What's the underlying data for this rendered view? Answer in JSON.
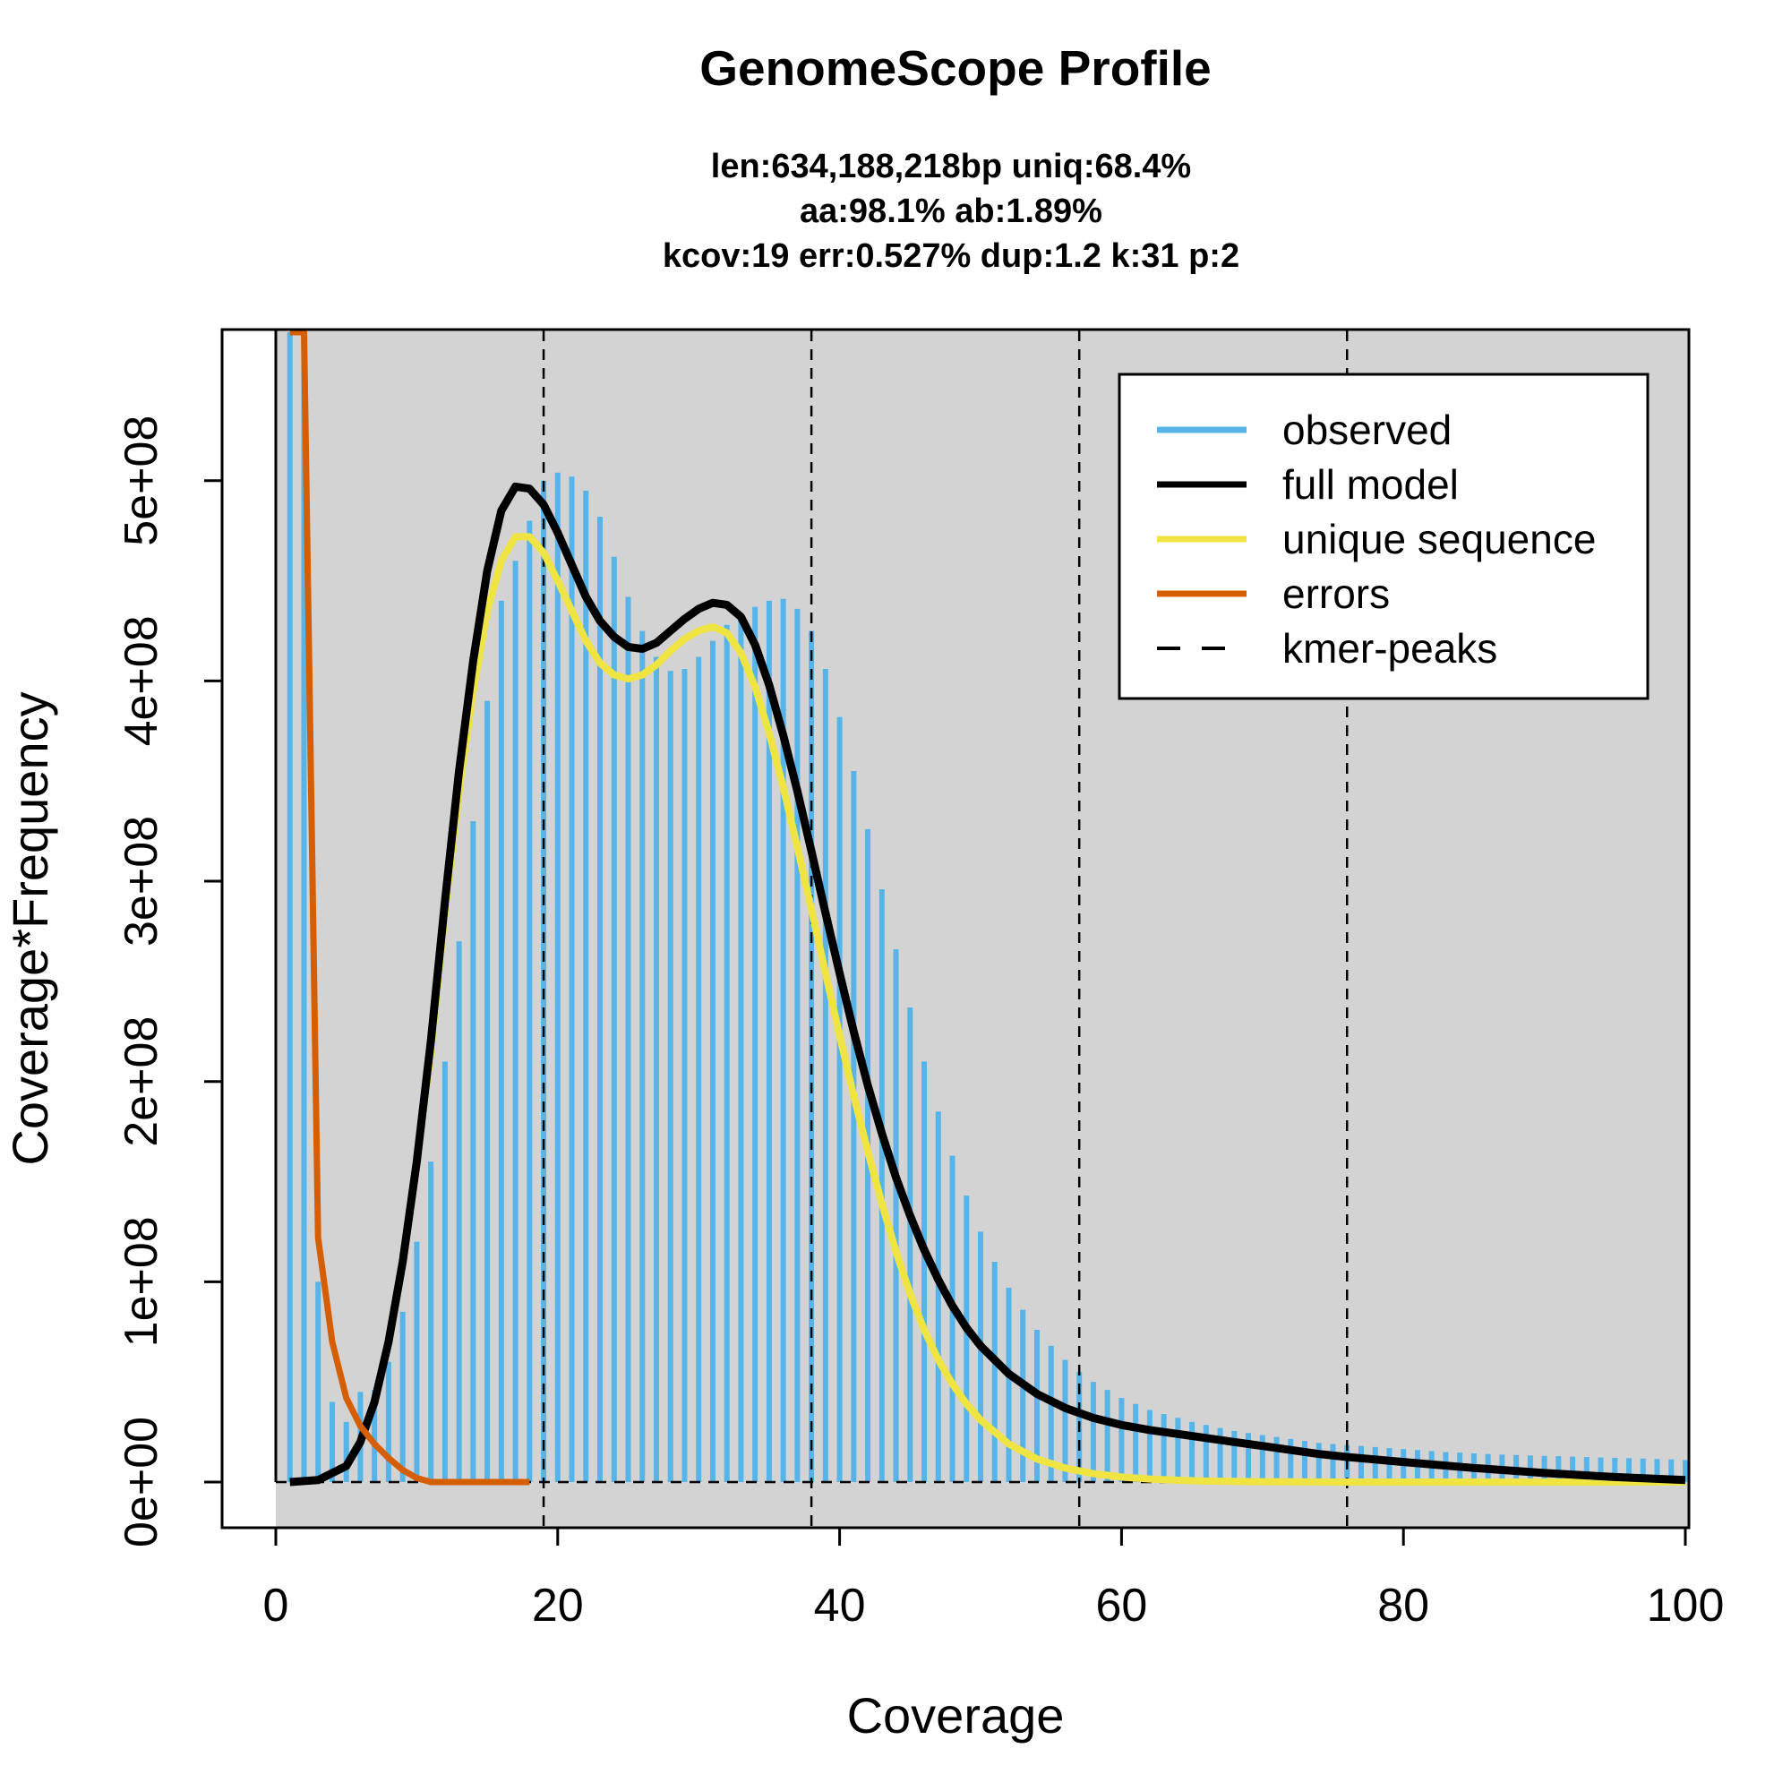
{
  "chart_data": {
    "type": "line",
    "title": "GenomeScope Profile",
    "subtitle_lines": [
      "len:634,188,218bp uniq:68.4%",
      "aa:98.1% ab:1.89%",
      "kcov:19 err:0.527%  dup:1.2  k:31 p:2"
    ],
    "xlabel": "Coverage",
    "ylabel": "Coverage*Frequency",
    "xlim": [
      0,
      100
    ],
    "ylim": [
      0,
      575000000.0
    ],
    "x_ticks": [
      0,
      20,
      40,
      60,
      80,
      100
    ],
    "x_tick_labels": [
      "0",
      "20",
      "40",
      "60",
      "80",
      "100"
    ],
    "y_ticks": [
      0,
      100000000,
      200000000,
      300000000,
      400000000,
      500000000
    ],
    "y_tick_labels": [
      "0e+00",
      "1e+08",
      "2e+08",
      "3e+08",
      "4e+08",
      "5e+08"
    ],
    "legend_position": "top-right",
    "colors": {
      "observed": "#56B4E9",
      "full_model": "#000000",
      "unique_sequence": "#F0E442",
      "errors": "#D55E00",
      "kmer_peaks": "#000000",
      "plot_background": "#D3D3D3"
    },
    "kmer_peaks": [
      19,
      38,
      57,
      76
    ],
    "observed": {
      "name": "observed",
      "x": [
        1,
        2,
        3,
        4,
        5,
        6,
        7,
        8,
        9,
        10,
        11,
        12,
        13,
        14,
        15,
        16,
        17,
        18,
        19,
        20,
        21,
        22,
        23,
        24,
        25,
        26,
        27,
        28,
        29,
        30,
        31,
        32,
        33,
        34,
        35,
        36,
        37,
        38,
        39,
        40,
        41,
        42,
        43,
        44,
        45,
        46,
        47,
        48,
        49,
        50,
        51,
        52,
        53,
        54,
        55,
        56,
        57,
        58,
        59,
        60,
        61,
        62,
        63,
        64,
        65,
        66,
        67,
        68,
        69,
        70,
        71,
        72,
        73,
        74,
        75,
        76,
        77,
        78,
        79,
        80,
        81,
        82,
        83,
        84,
        85,
        86,
        87,
        88,
        89,
        90,
        91,
        92,
        93,
        94,
        95,
        96,
        97,
        98,
        99,
        100
      ],
      "y": [
        575000000.0,
        575000000.0,
        100000000.0,
        40000000.0,
        30000000.0,
        45000000.0,
        46000000.0,
        60000000.0,
        85000000.0,
        120000000.0,
        160000000.0,
        210000000.0,
        270000000.0,
        330000000.0,
        390000000.0,
        440000000.0,
        460000000.0,
        480000000.0,
        500000000.0,
        504000000.0,
        502000000.0,
        495000000.0,
        482000000.0,
        462000000.0,
        442000000.0,
        425000000.0,
        412000000.0,
        405000000.0,
        406000000.0,
        412000000.0,
        420000000.0,
        428000000.0,
        433000000.0,
        437000000.0,
        440000000.0,
        441000000.0,
        436000000.0,
        425000000.0,
        406000000.0,
        382000000.0,
        355000000.0,
        326000000.0,
        296000000.0,
        266000000.0,
        237000000.0,
        210000000.0,
        185000000.0,
        163000000.0,
        143000000.0,
        125000000.0,
        110000000.0,
        97000000.0,
        86000000.0,
        76000000.0,
        68000000.0,
        61000000.0,
        55000000.0,
        50000000.0,
        46000000.0,
        42000000.0,
        39000000.0,
        36000000.0,
        34000000.0,
        32000000.0,
        30000000.0,
        28500000.0,
        27000000.0,
        25500000.0,
        24500000.0,
        23500000.0,
        22500000.0,
        21500000.0,
        20500000.0,
        19500000.0,
        19000000.0,
        18500000.0,
        18000000.0,
        17500000.0,
        17000000.0,
        16500000.0,
        16000000.0,
        15500000.0,
        15000000.0,
        14700000.0,
        14300000.0,
        14000000.0,
        13700000.0,
        13500000.0,
        13300000.0,
        13100000.0,
        12900000.0,
        12700000.0,
        12500000.0,
        12300000.0,
        12100000.0,
        11900000.0,
        11700000.0,
        11500000.0,
        11300000.0,
        11000000.0
      ]
    },
    "series": [
      {
        "name": "full model",
        "x": [
          1,
          3,
          5,
          6,
          7,
          8,
          9,
          10,
          11,
          12,
          13,
          14,
          15,
          16,
          17,
          18,
          19,
          20,
          21,
          22,
          23,
          24,
          25,
          26,
          27,
          28,
          29,
          30,
          31,
          32,
          33,
          34,
          35,
          36,
          37,
          38,
          39,
          40,
          41,
          42,
          43,
          44,
          45,
          46,
          47,
          48,
          49,
          50,
          52,
          54,
          56,
          58,
          60,
          62,
          64,
          66,
          68,
          70,
          72,
          74,
          76,
          80,
          85,
          90,
          95,
          100
        ],
        "y": [
          0,
          1000000.0,
          8000000.0,
          20000000.0,
          40000000.0,
          70000000.0,
          110000000.0,
          160000000.0,
          220000000.0,
          290000000.0,
          355000000.0,
          410000000.0,
          455000000.0,
          485000000.0,
          497000000.0,
          496000000.0,
          488000000.0,
          474000000.0,
          458000000.0,
          442000000.0,
          430000000.0,
          422000000.0,
          417000000.0,
          416000000.0,
          419000000.0,
          425000000.0,
          431000000.0,
          436000000.0,
          439000000.0,
          438000000.0,
          432000000.0,
          418000000.0,
          398000000.0,
          373000000.0,
          345000000.0,
          315000000.0,
          284000000.0,
          254000000.0,
          225000000.0,
          198000000.0,
          174000000.0,
          152000000.0,
          133000000.0,
          116000000.0,
          101000000.0,
          88000000.0,
          77000000.0,
          68000000.0,
          54000000.0,
          44000000.0,
          37000000.0,
          32000000.0,
          28500000.0,
          26000000.0,
          24000000.0,
          22000000.0,
          20000000.0,
          18000000.0,
          16000000.0,
          14000000.0,
          12500000.0,
          10000000.0,
          7000000.0,
          4500000.0,
          2500000.0,
          1000000.0
        ]
      },
      {
        "name": "unique sequence",
        "x": [
          1,
          3,
          5,
          6,
          7,
          8,
          9,
          10,
          11,
          12,
          13,
          14,
          15,
          16,
          17,
          18,
          19,
          20,
          21,
          22,
          23,
          24,
          25,
          26,
          27,
          28,
          29,
          30,
          31,
          32,
          33,
          34,
          35,
          36,
          37,
          38,
          39,
          40,
          41,
          42,
          43,
          44,
          45,
          46,
          47,
          48,
          49,
          50,
          52,
          54,
          56,
          58,
          60,
          62,
          64,
          66,
          68,
          70,
          72,
          74,
          76,
          80,
          85,
          90,
          95,
          100
        ],
        "y": [
          0,
          1000000.0,
          8000000.0,
          20000000.0,
          40000000.0,
          70000000.0,
          110000000.0,
          160000000.0,
          215000000.0,
          285000000.0,
          345000000.0,
          395000000.0,
          435000000.0,
          460000000.0,
          472000000.0,
          472000000.0,
          464000000.0,
          450000000.0,
          435000000.0,
          420000000.0,
          409000000.0,
          403000000.0,
          401000000.0,
          403000000.0,
          408000000.0,
          415000000.0,
          421000000.0,
          425000000.0,
          427000000.0,
          424000000.0,
          414000000.0,
          397000000.0,
          374000000.0,
          347000000.0,
          317000000.0,
          286000000.0,
          254000000.0,
          223000000.0,
          193000000.0,
          165000000.0,
          139000000.0,
          115000000.0,
          94000000.0,
          76000000.0,
          61000000.0,
          49000000.0,
          39000000.0,
          31000000.0,
          19000000.0,
          11500000.0,
          7000000.0,
          4200000.0,
          2500000.0,
          1500000.0,
          900000.0,
          500000.0,
          300000.0,
          200000.0,
          100000.0,
          50000.0,
          20000.0,
          0,
          0,
          0,
          0,
          0
        ]
      },
      {
        "name": "errors",
        "x": [
          1,
          2,
          3,
          4,
          5,
          6,
          7,
          8,
          9,
          10,
          11,
          12,
          13,
          14,
          15,
          16,
          17,
          18
        ],
        "y": [
          575000000.0,
          575000000.0,
          122000000.0,
          70000000.0,
          42000000.0,
          28000000.0,
          19000000.0,
          12000000.0,
          6000000.0,
          2000000.0,
          0,
          0,
          0,
          0,
          0,
          0,
          0,
          0
        ]
      }
    ],
    "legend": [
      {
        "label": "observed",
        "style": "solid",
        "color": "#56B4E9"
      },
      {
        "label": "full model",
        "style": "solid",
        "color": "#000000"
      },
      {
        "label": "unique sequence",
        "style": "solid",
        "color": "#F0E442"
      },
      {
        "label": "errors",
        "style": "solid",
        "color": "#D55E00"
      },
      {
        "label": "kmer-peaks",
        "style": "dashed",
        "color": "#000000"
      }
    ]
  }
}
